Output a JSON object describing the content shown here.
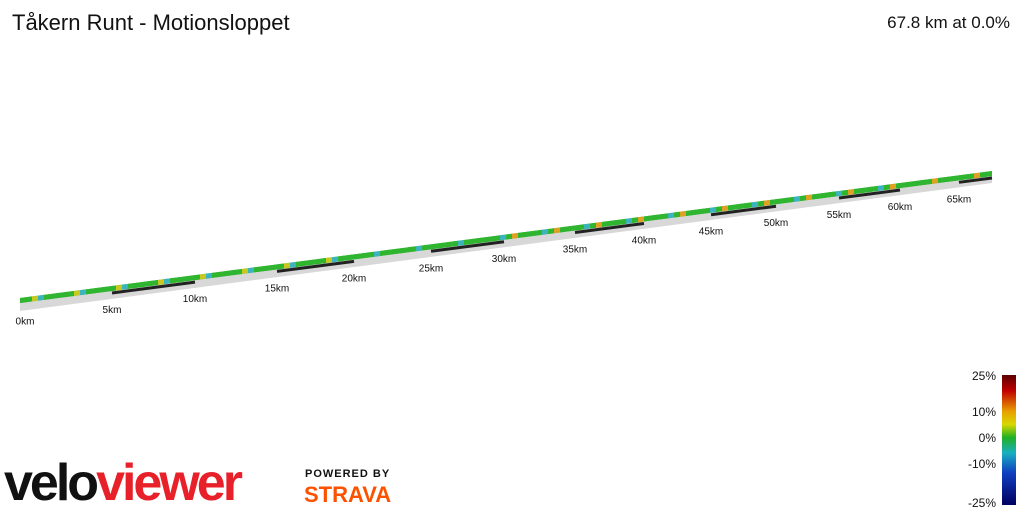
{
  "header": {
    "title": "Tåkern Runt - Motionsloppet",
    "summary": "67.8 km at 0.0%"
  },
  "distance_markers": [
    "0km",
    "5km",
    "10km",
    "15km",
    "20km",
    "25km",
    "30km",
    "35km",
    "40km",
    "45km",
    "50km",
    "55km",
    "60km",
    "65km"
  ],
  "gradient_legend": [
    "25%",
    "10%",
    "0%",
    "-10%",
    "-25%"
  ],
  "branding": {
    "logo_part_1": "velo",
    "logo_part_2": "viewer",
    "powered_by": "POWERED BY",
    "strava": "STRAVA"
  }
}
